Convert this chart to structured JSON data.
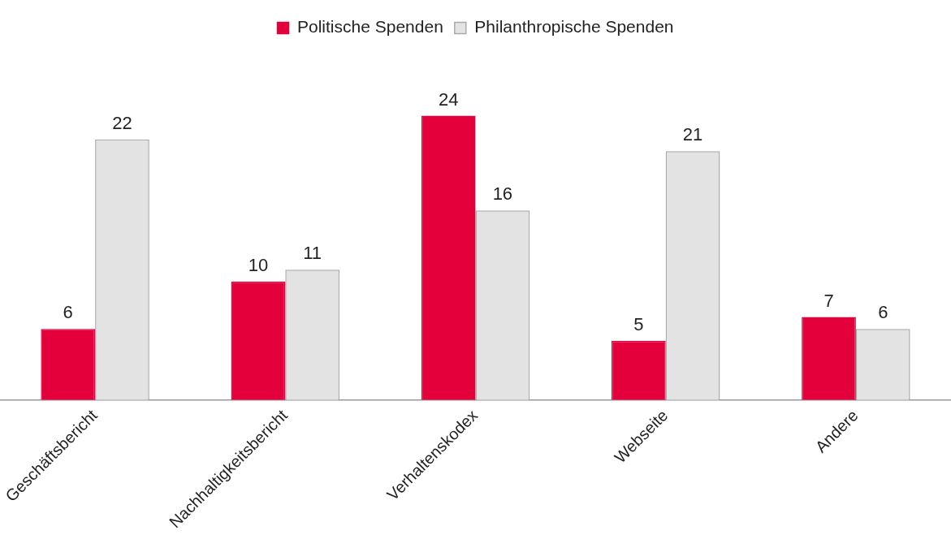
{
  "chart_data": {
    "type": "bar",
    "categories": [
      "Geschäftsbericht",
      "Nachhaltigkeitsbericht",
      "Verhaltenskodex",
      "Webseite",
      "Andere"
    ],
    "series": [
      {
        "name": "Politische Spenden",
        "color": "#e4003a",
        "values": [
          6,
          10,
          24,
          5,
          7
        ]
      },
      {
        "name": "Philanthropische Spenden",
        "color": "#e3e3e3",
        "values": [
          22,
          11,
          16,
          21,
          6
        ]
      }
    ],
    "data_labels": true,
    "legend": "top",
    "grid": false,
    "tick_labels": "x"
  }
}
